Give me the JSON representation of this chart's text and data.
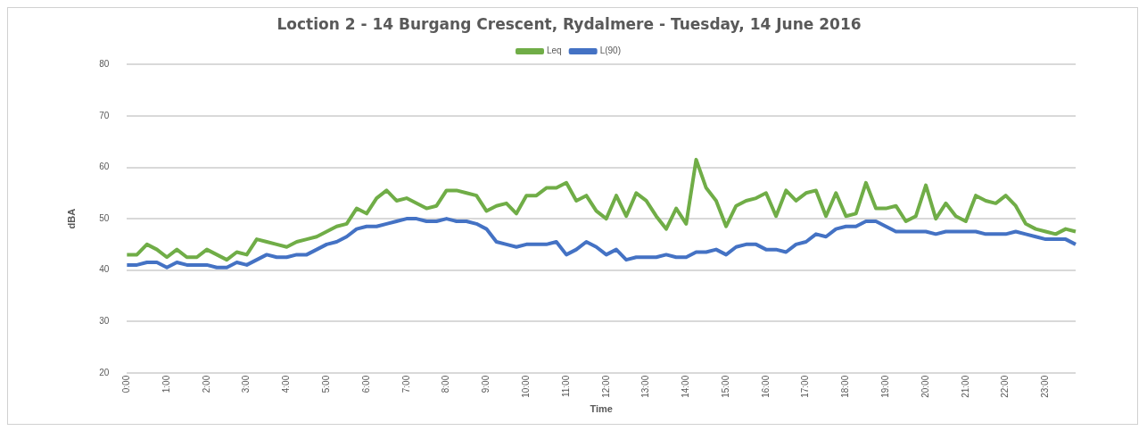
{
  "chart_data": {
    "type": "line",
    "title": "Loction 2 - 14 Burgang Crescent, Rydalmere - Tuesday, 14 June 2016",
    "xlabel": "Time",
    "ylabel": "dBA",
    "categories": [
      "0:00",
      null,
      null,
      null,
      "1:00",
      null,
      null,
      null,
      "2:00",
      null,
      null,
      null,
      "3:00",
      null,
      null,
      null,
      "4:00",
      null,
      null,
      null,
      "5:00",
      null,
      null,
      null,
      "6:00",
      null,
      null,
      null,
      "7:00",
      null,
      null,
      null,
      "8:00",
      null,
      null,
      null,
      "9:00",
      null,
      null,
      null,
      "10:00",
      null,
      null,
      null,
      "11:00",
      null,
      null,
      null,
      "12:00",
      null,
      null,
      null,
      "13:00",
      null,
      null,
      null,
      "14:00",
      null,
      null,
      null,
      "15:00",
      null,
      null,
      null,
      "16:00",
      null,
      null,
      null,
      "17:00",
      null,
      null,
      null,
      "18:00",
      null,
      null,
      null,
      "19:00",
      null,
      null,
      null,
      "20:00",
      null,
      null,
      null,
      "21:00",
      null,
      null,
      null,
      "22:00",
      null,
      null,
      null,
      "23:00",
      null,
      null,
      null
    ],
    "series": [
      {
        "name": "Leq",
        "color": "#70ad47",
        "values": [
          43,
          43,
          45,
          44,
          42.5,
          44,
          42.5,
          42.5,
          44,
          43,
          42,
          43.5,
          43,
          46,
          45.5,
          45,
          44.5,
          45.5,
          46,
          46.5,
          47.5,
          48.5,
          49,
          52,
          51,
          54,
          55.5,
          53.5,
          54,
          53,
          52,
          52.5,
          55.5,
          55.5,
          55,
          54.5,
          51.5,
          52.5,
          53,
          51,
          54.5,
          54.5,
          56,
          56,
          57,
          53.5,
          54.5,
          51.5,
          50,
          54.5,
          50.5,
          55,
          53.5,
          50.5,
          48,
          52,
          49,
          61.5,
          56,
          53.5,
          48.5,
          52.5,
          53.5,
          54,
          55,
          50.5,
          55.5,
          53.5,
          55,
          55.5,
          50.5,
          55,
          50.5,
          51,
          57,
          52,
          52,
          52.5,
          49.5,
          50.5,
          56.5,
          50,
          53,
          50.5,
          49.5,
          54.5,
          53.5,
          53,
          54.5,
          52.5,
          49,
          48,
          47.5,
          47,
          48,
          47.5
        ]
      },
      {
        "name": "L(90)",
        "color": "#4472c4",
        "values": [
          41,
          41,
          41.5,
          41.5,
          40.5,
          41.5,
          41,
          41,
          41,
          40.5,
          40.5,
          41.5,
          41,
          42,
          43,
          42.5,
          42.5,
          43,
          43,
          44,
          45,
          45.5,
          46.5,
          48,
          48.5,
          48.5,
          49,
          49.5,
          50,
          50,
          49.5,
          49.5,
          50,
          49.5,
          49.5,
          49,
          48,
          45.5,
          45,
          44.5,
          45,
          45,
          45,
          45.5,
          43,
          44,
          45.5,
          44.5,
          43,
          44,
          42,
          42.5,
          42.5,
          42.5,
          43,
          42.5,
          42.5,
          43.5,
          43.5,
          44,
          43,
          44.5,
          45,
          45,
          44,
          44,
          43.5,
          45,
          45.5,
          47,
          46.5,
          48,
          48.5,
          48.5,
          49.5,
          49.5,
          48.5,
          47.5,
          47.5,
          47.5,
          47.5,
          47,
          47.5,
          47.5,
          47.5,
          47.5,
          47,
          47,
          47,
          47.5,
          47,
          46.5,
          46,
          46,
          46,
          45
        ]
      }
    ],
    "ylim": [
      20,
      80
    ],
    "yticks": [
      20,
      30,
      40,
      50,
      60,
      70,
      80
    ],
    "grid": "y",
    "legend": "top",
    "marker": "none",
    "line_style": "solid"
  }
}
